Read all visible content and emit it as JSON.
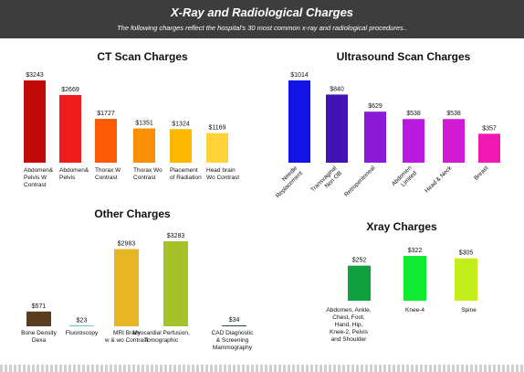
{
  "header": {
    "title": "X-Ray and Radiological Charges",
    "subtitle": "The following charges reflect the hospital's 30 most common x-ray and radiological procedures.."
  },
  "chart_data": [
    {
      "type": "bar",
      "title": "CT Scan Charges",
      "categories": [
        "Abdomen&\nPelvis W\nContrast",
        "Abdomen&\nPelvis",
        "Thorax W\nContrast",
        "Thorax Wo\nContrast",
        "Placement\nof Radiation",
        "Head brain\nWo Contrast"
      ],
      "values": [
        3243,
        2669,
        1727,
        1351,
        1324,
        1169
      ],
      "value_labels": [
        "$3243",
        "$2669",
        "$1727",
        "$1351",
        "$1324",
        "$1169"
      ],
      "colors": [
        "#c20a0a",
        "#ef1a1a",
        "#fb5a06",
        "#fb8f06",
        "#fcb900",
        "#ffd23a"
      ],
      "rotated_labels": false
    },
    {
      "type": "bar",
      "title": "Ultrasound Scan Charges",
      "categories": [
        "Needle\nReplacement",
        "Transvaginal\nNon OB",
        "Retroperitoneal",
        "Abdomen\nLimited",
        "Head & Neck",
        "Breast"
      ],
      "values": [
        1014,
        840,
        629,
        538,
        538,
        357
      ],
      "value_labels": [
        "$1014",
        "$840",
        "$629",
        "$538",
        "$538",
        "$357"
      ],
      "colors": [
        "#1414e6",
        "#4212b4",
        "#8a1ad8",
        "#b81ae0",
        "#d01ad4",
        "#f01ab2"
      ],
      "rotated_labels": true
    },
    {
      "type": "bar",
      "title": "Other Charges",
      "categories": [
        "Bone Density\nDexa",
        "Fluoroscopy",
        "MRI Brain\nw & wo Contrast",
        "Myocardial Perfusion,\nTomographic",
        "CAD Diagnostic\n& Screening\nMammography"
      ],
      "values": [
        571,
        23,
        2983,
        3283,
        34
      ],
      "value_labels": [
        "$571",
        "$23",
        "$2983",
        "$3283",
        "$34"
      ],
      "colors": [
        "#5a3d1e",
        "#22a8c4",
        "#e8b624",
        "#a4c22a",
        "#0f4a4a"
      ],
      "rotated_labels": false
    },
    {
      "type": "bar",
      "title": "Xray Charges",
      "categories": [
        "Abdomen, Ankle,\nChest, Foot,\nHand, Hip,\nKnee-2, Pelvis\nand Shoulder",
        "Knee-4",
        "Spine"
      ],
      "values": [
        252,
        322,
        305
      ],
      "value_labels": [
        "$252",
        "$322",
        "$305"
      ],
      "colors": [
        "#10a040",
        "#10ea30",
        "#c4ee1a"
      ],
      "rotated_labels": false
    }
  ]
}
